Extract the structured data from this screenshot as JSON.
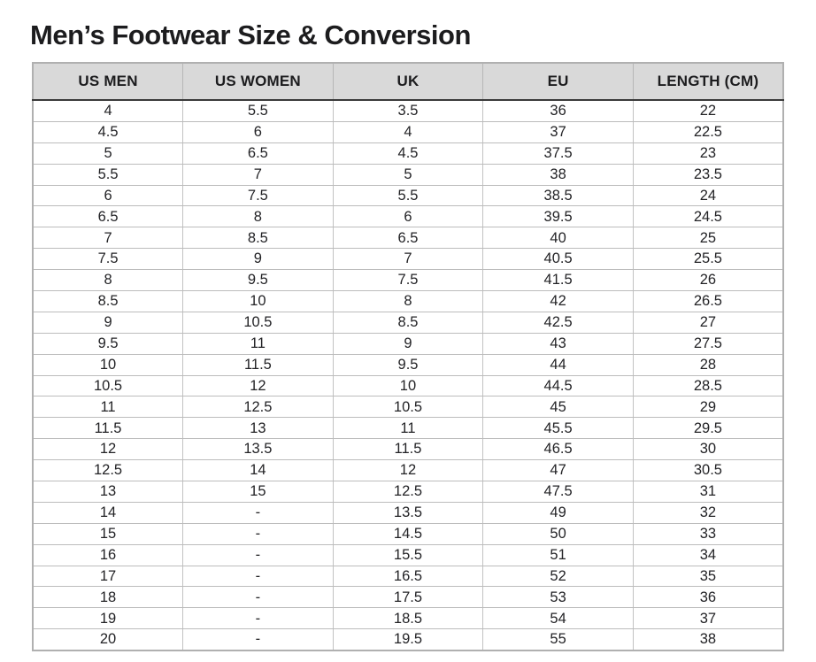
{
  "page": {
    "title": "Men’s Footwear Size & Conversion"
  },
  "colors": {
    "header_bg": "#d9d9d9",
    "outer_border": "#b0b0b0",
    "grid_line": "#bcbcbc",
    "header_rule": "#3a3a3a",
    "text": "#232326"
  },
  "chart_data": {
    "type": "table",
    "title": "Men’s Footwear Size & Conversion",
    "columns": [
      "US MEN",
      "US WOMEN",
      "UK",
      "EU",
      "LENGTH (CM)"
    ],
    "rows": [
      [
        "4",
        "5.5",
        "3.5",
        "36",
        "22"
      ],
      [
        "4.5",
        "6",
        "4",
        "37",
        "22.5"
      ],
      [
        "5",
        "6.5",
        "4.5",
        "37.5",
        "23"
      ],
      [
        "5.5",
        "7",
        "5",
        "38",
        "23.5"
      ],
      [
        "6",
        "7.5",
        "5.5",
        "38.5",
        "24"
      ],
      [
        "6.5",
        "8",
        "6",
        "39.5",
        "24.5"
      ],
      [
        "7",
        "8.5",
        "6.5",
        "40",
        "25"
      ],
      [
        "7.5",
        "9",
        "7",
        "40.5",
        "25.5"
      ],
      [
        "8",
        "9.5",
        "7.5",
        "41.5",
        "26"
      ],
      [
        "8.5",
        "10",
        "8",
        "42",
        "26.5"
      ],
      [
        "9",
        "10.5",
        "8.5",
        "42.5",
        "27"
      ],
      [
        "9.5",
        "11",
        "9",
        "43",
        "27.5"
      ],
      [
        "10",
        "11.5",
        "9.5",
        "44",
        "28"
      ],
      [
        "10.5",
        "12",
        "10",
        "44.5",
        "28.5"
      ],
      [
        "11",
        "12.5",
        "10.5",
        "45",
        "29"
      ],
      [
        "11.5",
        "13",
        "11",
        "45.5",
        "29.5"
      ],
      [
        "12",
        "13.5",
        "11.5",
        "46.5",
        "30"
      ],
      [
        "12.5",
        "14",
        "12",
        "47",
        "30.5"
      ],
      [
        "13",
        "15",
        "12.5",
        "47.5",
        "31"
      ],
      [
        "14",
        "-",
        "13.5",
        "49",
        "32"
      ],
      [
        "15",
        "-",
        "14.5",
        "50",
        "33"
      ],
      [
        "16",
        "-",
        "15.5",
        "51",
        "34"
      ],
      [
        "17",
        "-",
        "16.5",
        "52",
        "35"
      ],
      [
        "18",
        "-",
        "17.5",
        "53",
        "36"
      ],
      [
        "19",
        "-",
        "18.5",
        "54",
        "37"
      ],
      [
        "20",
        "-",
        "19.5",
        "55",
        "38"
      ]
    ]
  }
}
